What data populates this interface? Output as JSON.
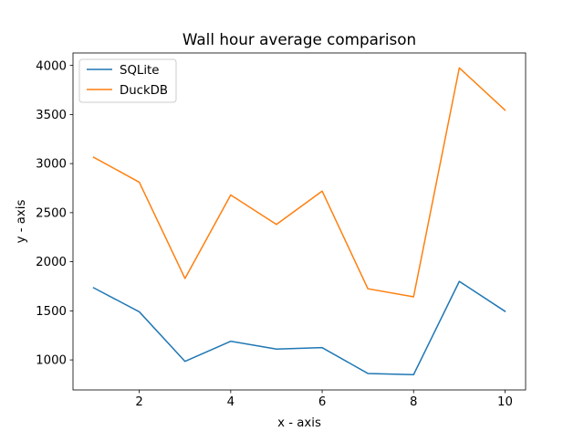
{
  "chart_data": {
    "type": "line",
    "title": "Wall hour average comparison",
    "xlabel": "x - axis",
    "ylabel": "y - axis",
    "x": [
      1,
      2,
      3,
      4,
      5,
      6,
      7,
      8,
      9,
      10
    ],
    "xlim": [
      0.55,
      10.45
    ],
    "ylim": [
      694,
      4127
    ],
    "xticks": [
      2,
      4,
      6,
      8,
      10
    ],
    "yticks": [
      1000,
      1500,
      2000,
      2500,
      3000,
      3500,
      4000
    ],
    "grid": false,
    "legend": "top-left",
    "series": [
      {
        "name": "SQLite",
        "color": "#1f77b4",
        "values": [
          1735,
          1490,
          985,
          1190,
          1110,
          1125,
          862,
          850,
          1800,
          1495
        ]
      },
      {
        "name": "DuckDB",
        "color": "#ff7f0e",
        "values": [
          3065,
          2810,
          1830,
          2680,
          2380,
          2720,
          1725,
          1643,
          3975,
          3545
        ]
      }
    ]
  }
}
